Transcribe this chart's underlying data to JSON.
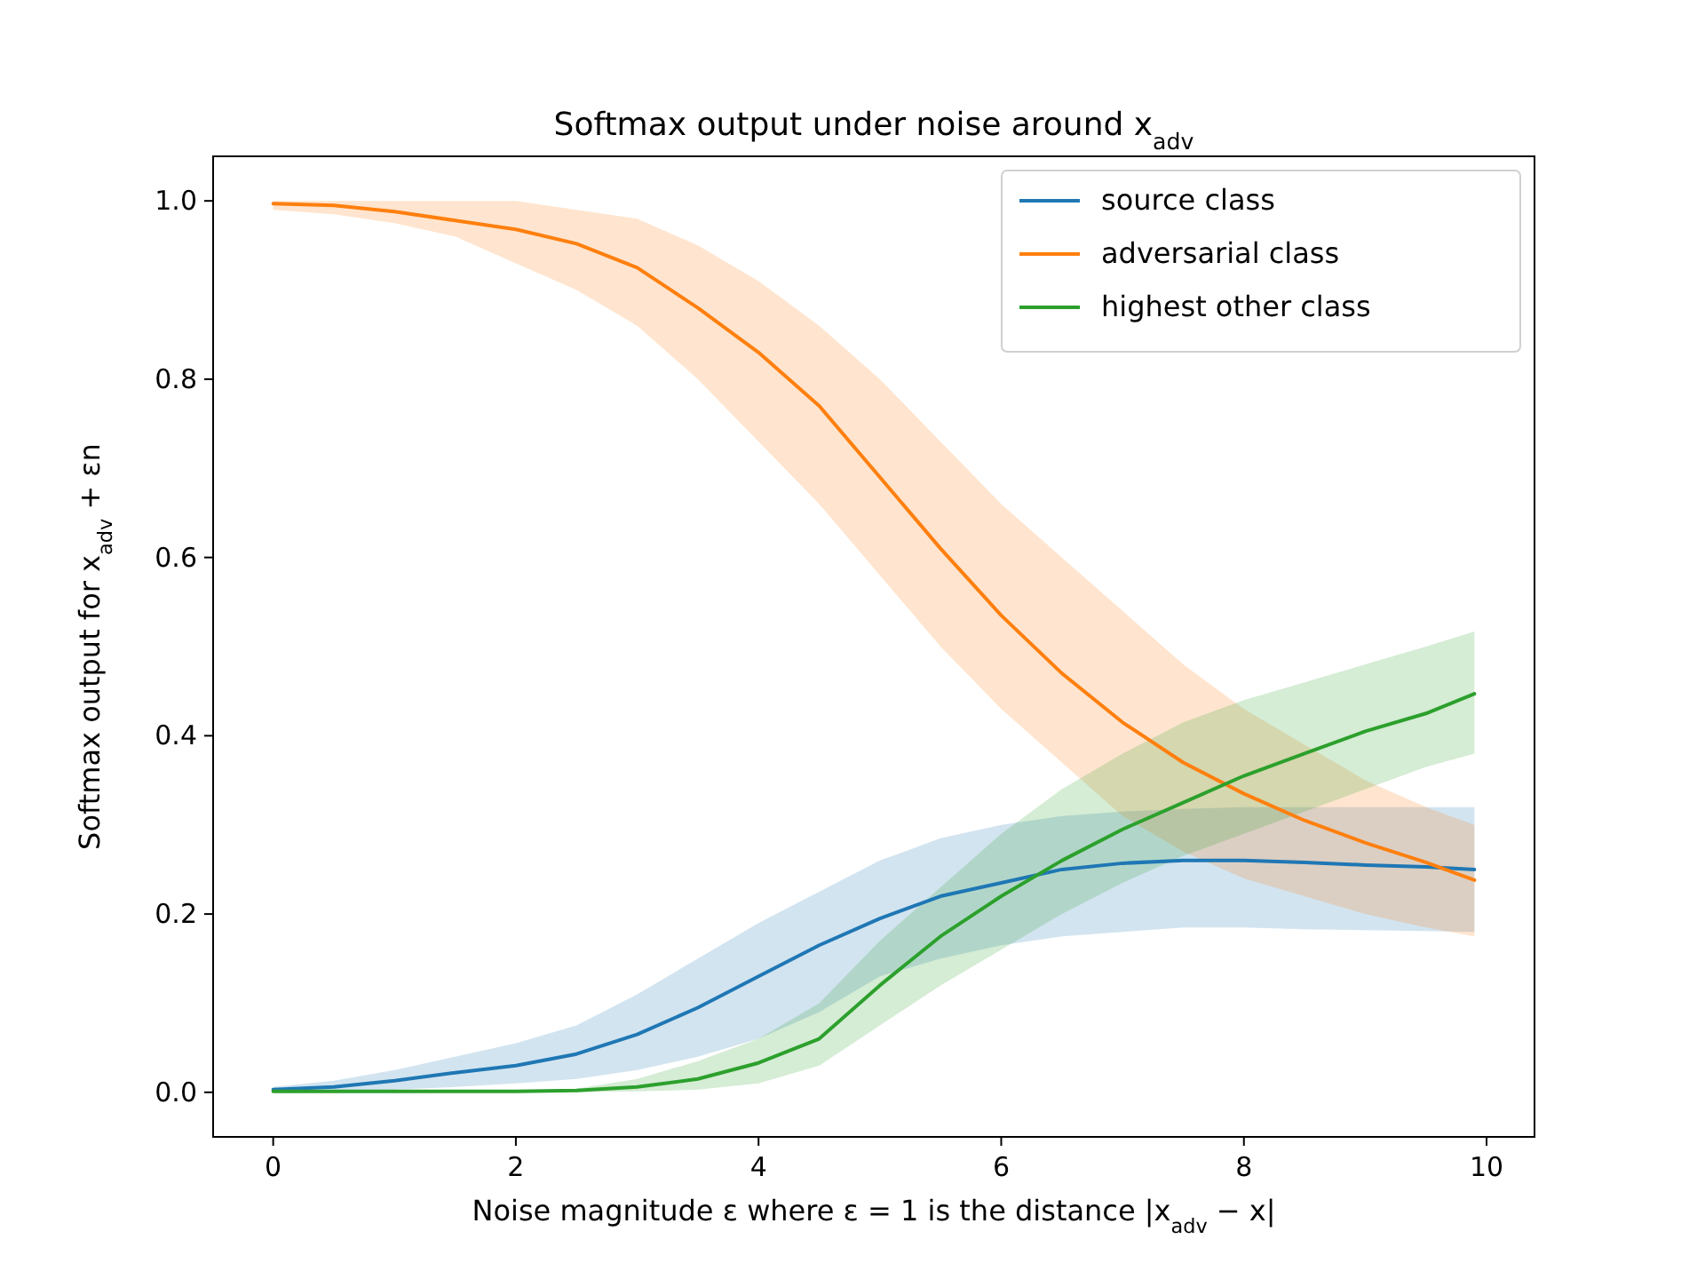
{
  "chart_data": {
    "type": "line",
    "title": "Softmax output under noise around x$_{adv}$",
    "xlabel": "Noise magnitude ε where ε = 1 is the distance |x$_{adv}$ − x|",
    "ylabel": "Softmax output for x$_{adv}$ + εn",
    "x": [
      0,
      0.5,
      1,
      1.5,
      2,
      2.5,
      3,
      3.5,
      4,
      4.5,
      5,
      5.5,
      6,
      6.5,
      7,
      7.5,
      8,
      8.5,
      9,
      9.5,
      9.9
    ],
    "series": [
      {
        "name": "source class",
        "color": "#1f77b4",
        "values": [
          0.003,
          0.006,
          0.013,
          0.022,
          0.03,
          0.043,
          0.065,
          0.095,
          0.13,
          0.165,
          0.195,
          0.22,
          0.235,
          0.25,
          0.257,
          0.26,
          0.26,
          0.258,
          0.255,
          0.253,
          0.25
        ],
        "lower": [
          0,
          0.001,
          0.003,
          0.006,
          0.01,
          0.015,
          0.025,
          0.04,
          0.06,
          0.09,
          0.13,
          0.15,
          0.165,
          0.175,
          0.18,
          0.185,
          0.185,
          0.183,
          0.182,
          0.181,
          0.18
        ],
        "upper": [
          0.006,
          0.013,
          0.025,
          0.04,
          0.055,
          0.075,
          0.11,
          0.15,
          0.19,
          0.225,
          0.26,
          0.285,
          0.3,
          0.31,
          0.315,
          0.318,
          0.32,
          0.32,
          0.32,
          0.32,
          0.32
        ]
      },
      {
        "name": "adversarial class",
        "color": "#ff7f0e",
        "values": [
          0.997,
          0.995,
          0.988,
          0.978,
          0.968,
          0.952,
          0.925,
          0.88,
          0.83,
          0.77,
          0.69,
          0.61,
          0.535,
          0.47,
          0.415,
          0.37,
          0.335,
          0.305,
          0.28,
          0.258,
          0.238
        ],
        "lower": [
          0.99,
          0.985,
          0.975,
          0.96,
          0.93,
          0.9,
          0.86,
          0.8,
          0.73,
          0.66,
          0.58,
          0.5,
          0.43,
          0.37,
          0.31,
          0.27,
          0.24,
          0.22,
          0.2,
          0.185,
          0.175
        ],
        "upper": [
          1,
          1,
          1,
          1,
          1,
          0.99,
          0.98,
          0.95,
          0.91,
          0.86,
          0.8,
          0.73,
          0.66,
          0.6,
          0.54,
          0.48,
          0.43,
          0.39,
          0.35,
          0.32,
          0.3
        ]
      },
      {
        "name": "highest other class",
        "color": "#2ca02c",
        "values": [
          0.001,
          0.001,
          0.001,
          0.001,
          0.001,
          0.002,
          0.006,
          0.015,
          0.033,
          0.06,
          0.12,
          0.175,
          0.22,
          0.26,
          0.295,
          0.325,
          0.355,
          0.38,
          0.405,
          0.425,
          0.447
        ],
        "lower": [
          0,
          0,
          0,
          0,
          0,
          0,
          0.001,
          0.003,
          0.01,
          0.03,
          0.075,
          0.12,
          0.16,
          0.2,
          0.235,
          0.265,
          0.29,
          0.315,
          0.34,
          0.365,
          0.38
        ],
        "upper": [
          0.002,
          0.002,
          0.002,
          0.002,
          0.002,
          0.004,
          0.015,
          0.035,
          0.06,
          0.1,
          0.17,
          0.23,
          0.29,
          0.34,
          0.38,
          0.415,
          0.44,
          0.46,
          0.48,
          0.5,
          0.517
        ]
      }
    ],
    "xlim": [
      -0.495,
      10.395
    ],
    "xticks": [
      0,
      2,
      4,
      6,
      8,
      10
    ],
    "ylim": [
      -0.05,
      1.05
    ],
    "yticks": [
      {
        "value": 0,
        "label": "0.0"
      },
      {
        "value": 0.2,
        "label": "0.2"
      },
      {
        "value": 0.4,
        "label": "0.4"
      },
      {
        "value": 0.6,
        "label": "0.6"
      },
      {
        "value": 0.8,
        "label": "0.8"
      },
      {
        "value": 1,
        "label": "1.0"
      }
    ],
    "legend": "top right",
    "line_style": "solid"
  }
}
